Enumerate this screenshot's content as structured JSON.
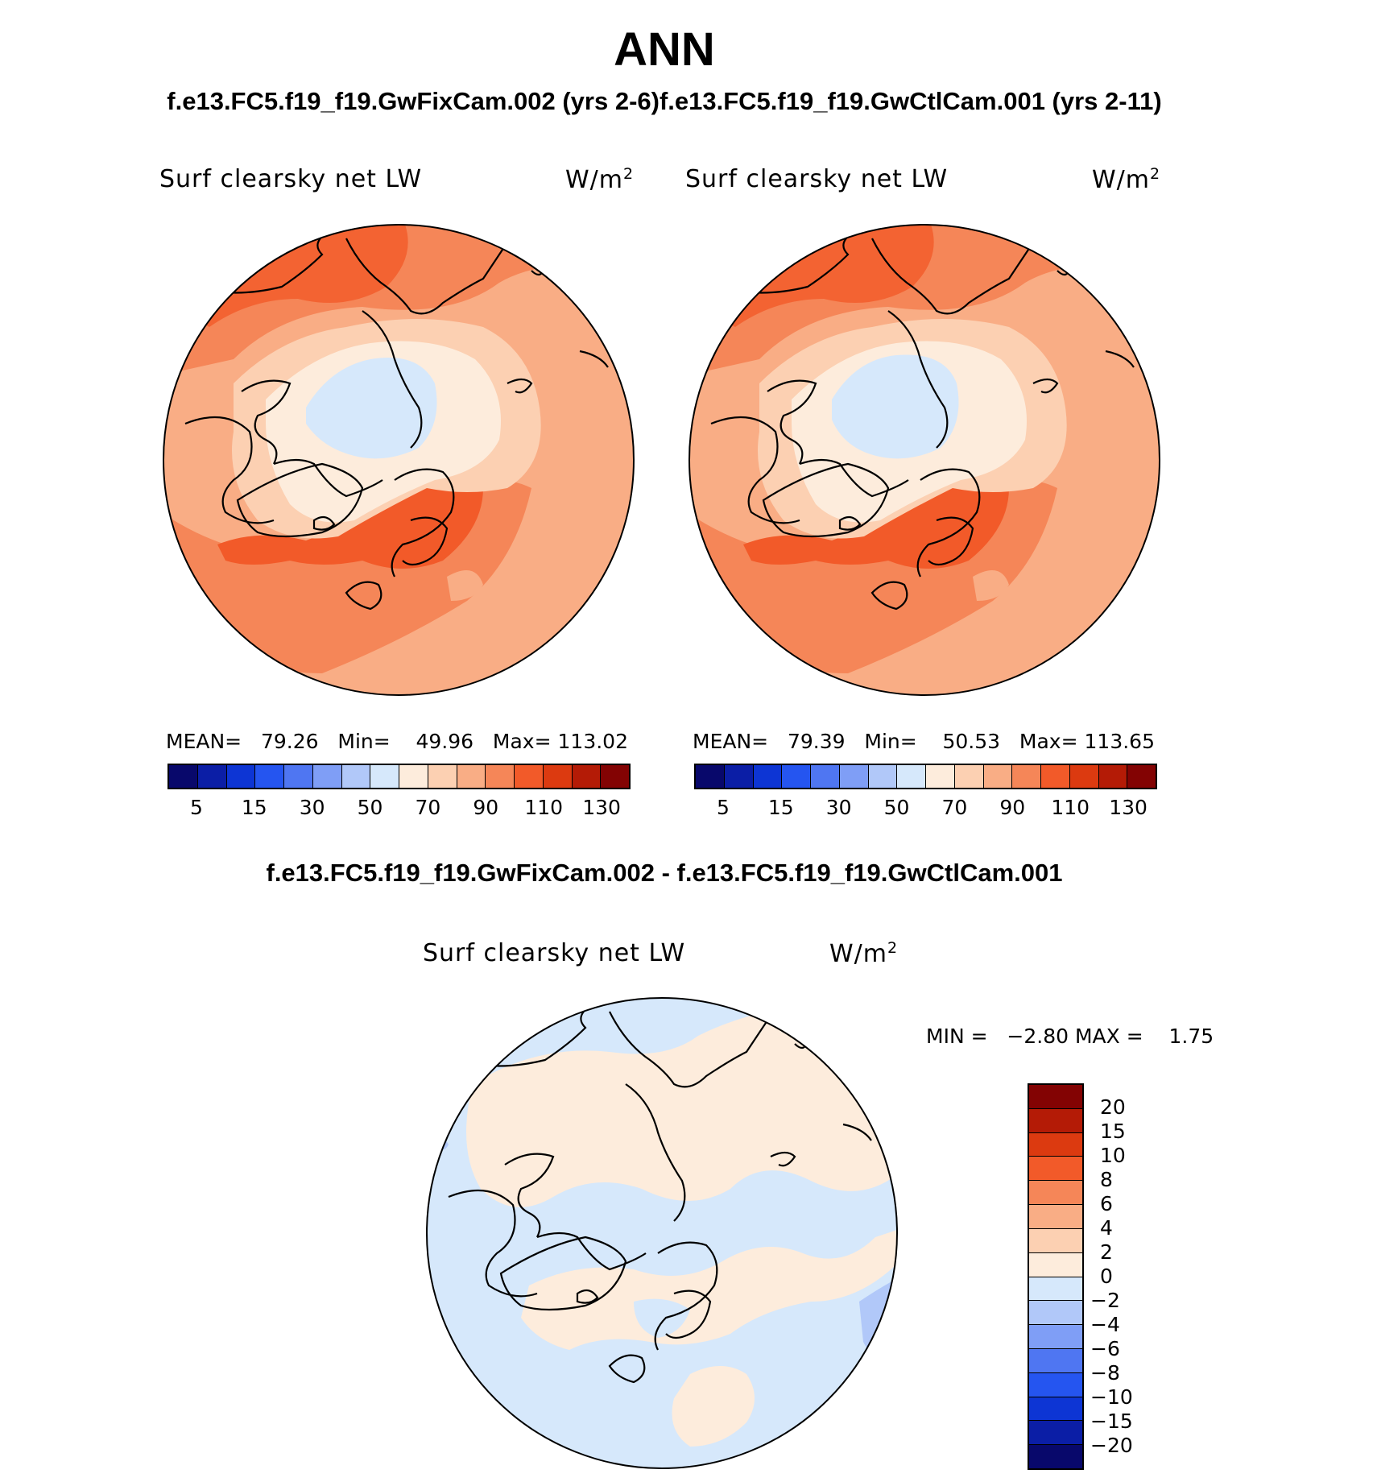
{
  "title": "ANN",
  "case_titles": "f.e13.FC5.f19_f19.GwFixCam.002 (yrs 2-6)f.e13.FC5.f19_f19.GwCtlCam.001 (yrs 2-11)",
  "diff_title": "f.e13.FC5.f19_f19.GwFixCam.002 - f.e13.FC5.f19_f19.GwCtlCam.001",
  "panels": [
    {
      "variable": "Surf clearsky net LW",
      "units": "W/m",
      "units_sup": "2",
      "stats": {
        "mean_label": "MEAN=",
        "mean": "79.26",
        "min_label": "Min=",
        "min": "49.96",
        "max_label": "Max=",
        "max": "113.02"
      }
    },
    {
      "variable": "Surf clearsky net LW",
      "units": "W/m",
      "units_sup": "2",
      "stats": {
        "mean_label": "MEAN=",
        "mean": "79.39",
        "min_label": "Min=",
        "min": "50.53",
        "max_label": "Max=",
        "max": "113.65"
      }
    }
  ],
  "diff_panel": {
    "variable": "Surf clearsky net LW",
    "units": "W/m",
    "units_sup": "2",
    "minmax": {
      "min_label": "MIN =",
      "min": "−2.80",
      "max_label": "MAX =",
      "max": "1.75"
    }
  },
  "colorbar": {
    "colors": [
      "#08086b",
      "#0b1ea6",
      "#0d35d4",
      "#2555f0",
      "#4f76f2",
      "#7f9ef6",
      "#b1c8f9",
      "#d6e8fb",
      "#fdecdc",
      "#fcd0b2",
      "#f9ad85",
      "#f58658",
      "#f25a29",
      "#dc3a10",
      "#b41b06",
      "#830303"
    ],
    "tick_labels": [
      "5",
      "15",
      "30",
      "50",
      "70",
      "90",
      "110",
      "130"
    ]
  },
  "diff_colorbar": {
    "colors": [
      "#830303",
      "#b41b06",
      "#dc3a10",
      "#f25a29",
      "#f58658",
      "#f9ad85",
      "#fcd0b2",
      "#fdecdc",
      "#d6e8fb",
      "#b1c8f9",
      "#7f9ef6",
      "#4f76f2",
      "#2555f0",
      "#0d35d4",
      "#0b1ea6",
      "#08086b"
    ],
    "tick_labels": [
      "20",
      "15",
      "10",
      "8",
      "6",
      "4",
      "2",
      "0",
      "−2",
      "−4",
      "−6",
      "−8",
      "−10",
      "−15",
      "−20"
    ]
  },
  "map_data": {
    "projection": "north polar stereographic",
    "panels": [
      "GwFixCam.002",
      "GwCtlCam.001",
      "difference"
    ]
  }
}
